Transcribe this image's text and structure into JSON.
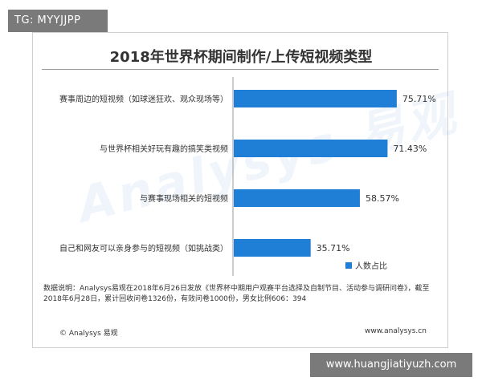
{
  "watermark_tag_top": "TG: MYYJJPP",
  "watermark_tag_bottom": "www.huangjiatiyuzh.com",
  "background_watermark": "Analysys 易观",
  "chart_data": {
    "type": "bar",
    "orientation": "horizontal",
    "title": "2018年世界杯期间制作/上传短视频类型",
    "categories": [
      "赛事周边的短视频（如球迷狂欢、观众现场等）",
      "与世界杯相关好玩有趣的搞笑类视频",
      "与赛事现场相关的短视频",
      "自己和网友可以亲身参与的短视频（如挑战类）"
    ],
    "series": [
      {
        "name": "人数占比",
        "values": [
          75.71,
          71.43,
          58.57,
          35.71
        ],
        "labels": [
          "75.71%",
          "71.43%",
          "58.57%",
          "35.71%"
        ],
        "color": "#1f7fd6"
      }
    ],
    "xlim": [
      0,
      100
    ],
    "grid": false,
    "legend_position": "bottom-right"
  },
  "note": "数据说明：Analysys易观在2018年6月26日发放《世界杯中期用户观赛平台选择及自制节目、活动参与调研问卷》，截至2018年6月28日，累计回收问卷1326份，有效问卷1000份，男女比例606：394",
  "footer": {
    "left": "© Analysys 易观",
    "right": "www.analysys.cn"
  }
}
